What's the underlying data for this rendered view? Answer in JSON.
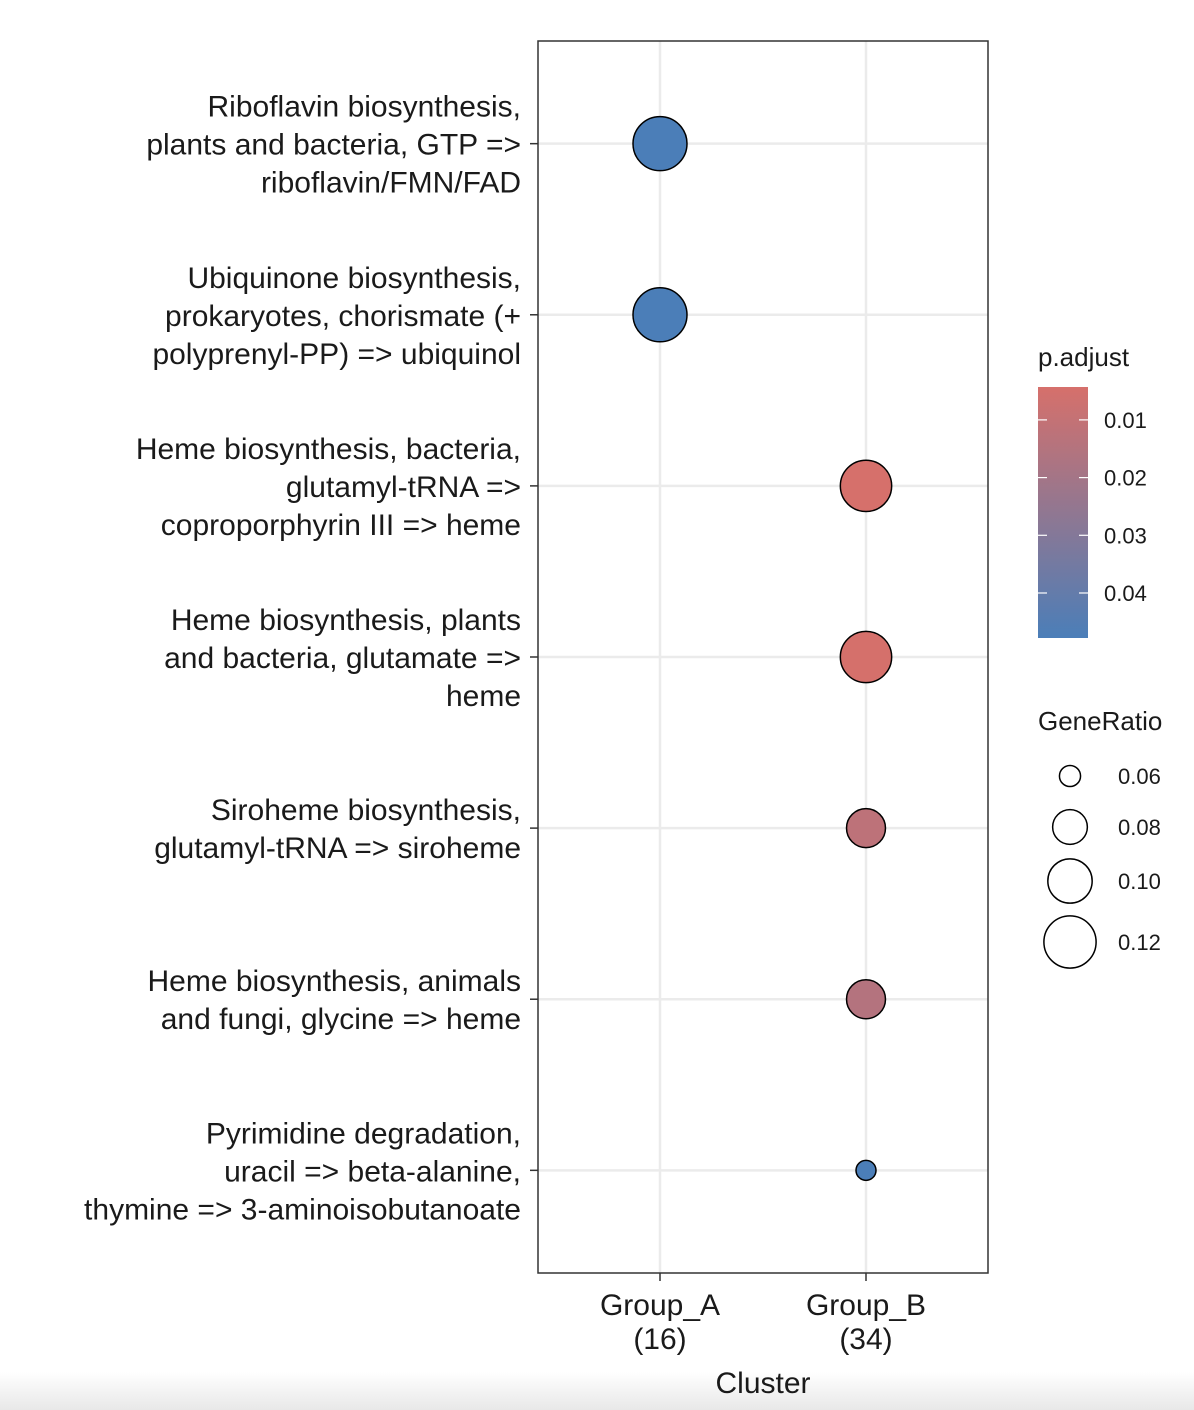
{
  "chart_data": {
    "type": "dot",
    "xlabel": "Cluster",
    "x": [
      "Group_A\n(16)",
      "Group_B\n(34)"
    ],
    "categories": [
      "Riboflavin biosynthesis,\nplants and bacteria, GTP =>\nriboflavin/FMN/FAD",
      "Ubiquinone biosynthesis,\nprokaryotes, chorismate (+\npolyprenyl-PP) => ubiquinol",
      "Heme biosynthesis, bacteria,\nglutamyl-tRNA =>\ncoproporphyrin III => heme",
      "Heme biosynthesis, plants\nand bacteria, glutamate =>\nheme",
      "Siroheme biosynthesis,\nglutamyl-tRNA => siroheme",
      "Heme biosynthesis, animals\nand fungi, glycine => heme",
      "Pyrimidine degradation,\nuracil => beta-alanine,\nthymine => 3-aminoisobutanoate"
    ],
    "gene_ratio": [
      [
        0.125,
        0.125,
        null,
        null,
        null,
        null,
        null
      ],
      [
        null,
        null,
        0.1176,
        0.1176,
        0.0882,
        0.0882,
        0.0588
      ]
    ],
    "p_adjust": [
      [
        0.0478,
        0.0478,
        null,
        null,
        null,
        null,
        null
      ],
      [
        null,
        null,
        0.0043,
        0.0045,
        0.012,
        0.015,
        0.0478
      ]
    ],
    "color_title": "p.adjust",
    "color_lim": [
      0.0043,
      0.0478
    ],
    "color_ticks": [
      0.01,
      0.02,
      0.03,
      0.04
    ],
    "low_color": "#d6706b",
    "high_color": "#4b7eb8",
    "size_title": "GeneRatio",
    "size_ticks": [
      0.06,
      0.08,
      {
        "value": 0.1,
        "label": "0.10"
      },
      0.12
    ],
    "grid": true
  }
}
